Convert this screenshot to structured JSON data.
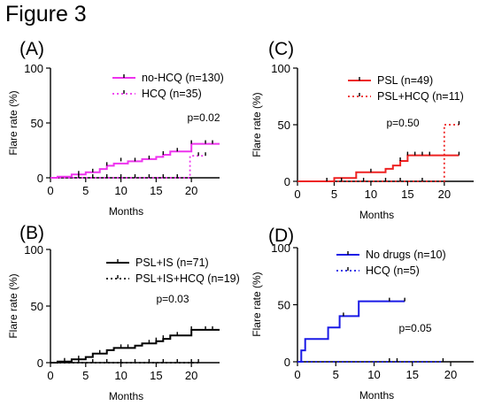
{
  "figure_title": "Figure 3",
  "chart_data": [
    {
      "panel_label": "(A)",
      "type": "line",
      "ylabel": "Flare rate (%)",
      "xlabel": "Months",
      "xlim": [
        0,
        24
      ],
      "ylim": [
        0,
        100
      ],
      "xticks": [
        "0",
        "5",
        "10",
        "15",
        "20"
      ],
      "yticks": [
        "0",
        "50",
        "100"
      ],
      "annotation": "p=0.02",
      "legend_position": "top-right",
      "series": [
        {
          "name": "no-HCQ (n=130)",
          "color": "#ee33ee",
          "dash": "solid",
          "x": [
            0,
            1,
            3,
            5,
            7,
            8,
            9,
            11,
            13,
            15,
            16,
            17,
            20,
            24
          ],
          "y": [
            0,
            1,
            3,
            5,
            8,
            11,
            13,
            15,
            17,
            19,
            21,
            24,
            31,
            31
          ],
          "censor_x": [
            4,
            6,
            8,
            10,
            12,
            14,
            16,
            18,
            20,
            22,
            23
          ],
          "censor_y": [
            3,
            5,
            11,
            15,
            15,
            17,
            21,
            24,
            31,
            31,
            31
          ]
        },
        {
          "name": "HCQ (n=35)",
          "color": "#ee33ee",
          "dash": "dotted",
          "x": [
            0,
            19.8,
            22
          ],
          "y": [
            0,
            20,
            20
          ],
          "censor_x": [
            4,
            6,
            8,
            10,
            12,
            14,
            16,
            18,
            21,
            22
          ],
          "censor_y": [
            0,
            0,
            0,
            0,
            0,
            0,
            0,
            0,
            20,
            20
          ]
        }
      ]
    },
    {
      "panel_label": "(B)",
      "type": "line",
      "ylabel": "Flare rate (%)",
      "xlabel": "Months",
      "xlim": [
        0,
        24
      ],
      "ylim": [
        0,
        100
      ],
      "xticks": [
        "0",
        "5",
        "10",
        "15",
        "20"
      ],
      "yticks": [
        "0",
        "50",
        "100"
      ],
      "annotation": "p=0.03",
      "legend_position": "top-right",
      "series": [
        {
          "name": "PSL+IS (n=71)",
          "color": "#000000",
          "dash": "solid",
          "x": [
            0,
            1,
            3,
            5,
            6,
            8,
            9,
            12,
            13,
            15,
            16,
            17,
            20,
            24
          ],
          "y": [
            0,
            1,
            3,
            5,
            8,
            11,
            13,
            15,
            17,
            19,
            21,
            24,
            29,
            29
          ],
          "censor_x": [
            2,
            4,
            7,
            10,
            11,
            14,
            15,
            16,
            18,
            20,
            22,
            23
          ],
          "censor_y": [
            1,
            3,
            8,
            13,
            13,
            17,
            19,
            21,
            24,
            29,
            29,
            29
          ]
        },
        {
          "name": "PSL+IS+HCQ (n=19)",
          "color": "#000000",
          "dash": "dotted",
          "x": [
            0,
            21
          ],
          "y": [
            0,
            0
          ],
          "censor_x": [
            4,
            6,
            8,
            10,
            12,
            14,
            16,
            18,
            20,
            21
          ],
          "censor_y": [
            0,
            0,
            0,
            0,
            0,
            0,
            0,
            0,
            0,
            0
          ]
        }
      ]
    },
    {
      "panel_label": "(C)",
      "type": "line",
      "ylabel": "Flare rate (%)",
      "xlabel": "Months",
      "xlim": [
        0,
        24
      ],
      "ylim": [
        0,
        100
      ],
      "xticks": [
        "0",
        "5",
        "10",
        "15",
        "20"
      ],
      "yticks": [
        "0",
        "50",
        "100"
      ],
      "annotation": "p=0.50",
      "legend_position": "top-right",
      "series": [
        {
          "name": "PSL (n=49)",
          "color": "#ee2222",
          "dash": "solid",
          "x": [
            0,
            5,
            8,
            12,
            13,
            14,
            15,
            22
          ],
          "y": [
            0,
            3,
            8,
            11,
            14,
            18,
            23,
            23
          ],
          "censor_x": [
            4,
            10,
            14,
            15,
            16,
            17,
            18,
            22
          ],
          "censor_y": [
            0,
            8,
            18,
            23,
            23,
            23,
            23,
            23
          ]
        },
        {
          "name": "PSL+HCQ (n=11)",
          "color": "#ee2222",
          "dash": "dotted",
          "x": [
            0,
            20,
            22
          ],
          "y": [
            0,
            50,
            50
          ],
          "censor_x": [
            6,
            9,
            12,
            14,
            17,
            22
          ],
          "censor_y": [
            0,
            0,
            0,
            0,
            0,
            50
          ]
        }
      ]
    },
    {
      "panel_label": "(D)",
      "type": "line",
      "ylabel": "Flare rate (%)",
      "xlabel": "Months",
      "xlim": [
        0,
        23
      ],
      "ylim": [
        0,
        100
      ],
      "xticks": [
        "0",
        "5",
        "10",
        "15",
        "20"
      ],
      "yticks": [
        "0",
        "50",
        "100"
      ],
      "annotation": "p=0.05",
      "legend_position": "top-right",
      "series": [
        {
          "name": "No drugs (n=10)",
          "color": "#1a1ae6",
          "dash": "solid",
          "x": [
            0,
            0.5,
            1,
            4,
            5.5,
            8,
            14
          ],
          "y": [
            0,
            10,
            20,
            30,
            40,
            53,
            53
          ],
          "censor_x": [
            6,
            12,
            14
          ],
          "censor_y": [
            40,
            53,
            53
          ]
        },
        {
          "name": "HCQ (n=5)",
          "color": "#1a1ae6",
          "dash": "dotted",
          "x": [
            0,
            19
          ],
          "y": [
            0,
            0
          ],
          "censor_x": [
            12,
            13,
            19
          ],
          "censor_y": [
            0,
            0,
            0
          ]
        }
      ]
    }
  ]
}
